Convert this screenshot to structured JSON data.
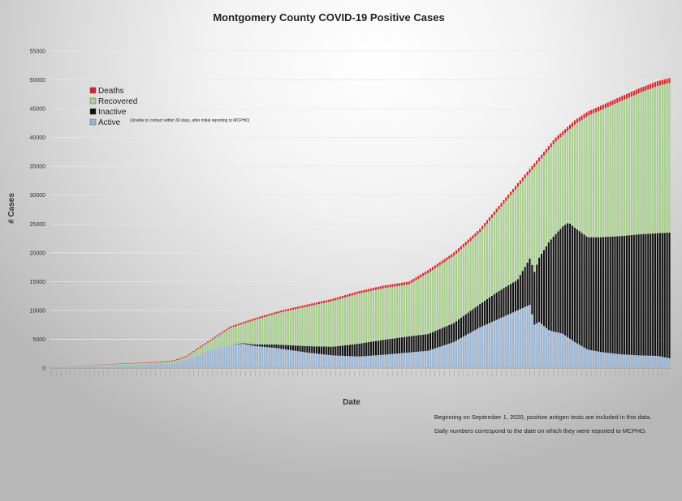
{
  "chart_data": {
    "type": "bar",
    "stacked": true,
    "title": "Montgomery County COVID-19 Positive Cases",
    "xlabel": "Date",
    "ylabel": "# Cases",
    "ylim": [
      0,
      55000
    ],
    "yticks": [
      0,
      5000,
      10000,
      15000,
      20000,
      25000,
      30000,
      35000,
      40000,
      45000,
      50000,
      55000
    ],
    "grid": true,
    "legend_position": "top-left",
    "series": [
      {
        "name": "Deaths",
        "color": "#e0202a"
      },
      {
        "name": "Recovered",
        "color": "#a9d08e"
      },
      {
        "name": "Inactive",
        "color": "#111111",
        "note": "(Unable to contact within 30 days, after initial reporting to MCPHD)"
      },
      {
        "name": "Active",
        "color": "#9bb7d6"
      }
    ],
    "bar_count": 262,
    "keyframes_total": [
      [
        0,
        0
      ],
      [
        10,
        120
      ],
      [
        30,
        500
      ],
      [
        60,
        850
      ],
      [
        80,
        1000
      ],
      [
        95,
        1300
      ],
      [
        105,
        2000
      ],
      [
        115,
        3500
      ],
      [
        125,
        5000
      ],
      [
        140,
        7200
      ],
      [
        160,
        8700
      ],
      [
        180,
        10000
      ],
      [
        200,
        11000
      ],
      [
        220,
        12000
      ],
      [
        240,
        13300
      ],
      [
        260,
        14300
      ],
      [
        280,
        15000
      ],
      [
        295,
        17000
      ],
      [
        315,
        20000
      ],
      [
        335,
        24000
      ],
      [
        350,
        28000
      ],
      [
        365,
        32000
      ],
      [
        380,
        36000
      ],
      [
        395,
        40000
      ],
      [
        410,
        43000
      ],
      [
        420,
        44500
      ],
      [
        440,
        46500
      ],
      [
        460,
        48500
      ],
      [
        475,
        49800
      ],
      [
        484,
        50300
      ]
    ],
    "keyframes_active": [
      [
        0,
        0
      ],
      [
        60,
        500
      ],
      [
        95,
        800
      ],
      [
        115,
        2200
      ],
      [
        125,
        3200
      ],
      [
        140,
        4000
      ],
      [
        150,
        4200
      ],
      [
        160,
        3800
      ],
      [
        175,
        3500
      ],
      [
        200,
        2700
      ],
      [
        220,
        2200
      ],
      [
        240,
        2000
      ],
      [
        260,
        2300
      ],
      [
        280,
        2700
      ],
      [
        295,
        3000
      ],
      [
        315,
        4500
      ],
      [
        335,
        7000
      ],
      [
        350,
        8500
      ],
      [
        360,
        9500
      ],
      [
        370,
        10500
      ],
      [
        375,
        11000
      ],
      [
        378,
        7500
      ],
      [
        382,
        8000
      ],
      [
        390,
        6500
      ],
      [
        400,
        6000
      ],
      [
        410,
        4500
      ],
      [
        420,
        3200
      ],
      [
        430,
        2800
      ],
      [
        445,
        2400
      ],
      [
        460,
        2200
      ],
      [
        475,
        2100
      ],
      [
        484,
        1700
      ]
    ],
    "keyframes_inactive": [
      [
        0,
        0
      ],
      [
        140,
        0
      ],
      [
        155,
        200
      ],
      [
        175,
        600
      ],
      [
        200,
        1100
      ],
      [
        220,
        1500
      ],
      [
        240,
        2200
      ],
      [
        260,
        2600
      ],
      [
        280,
        2800
      ],
      [
        295,
        2900
      ],
      [
        315,
        3300
      ],
      [
        335,
        4000
      ],
      [
        350,
        4800
      ],
      [
        365,
        5300
      ],
      [
        378,
        9000
      ],
      [
        390,
        15500
      ],
      [
        405,
        20000
      ],
      [
        420,
        19500
      ],
      [
        440,
        20300
      ],
      [
        460,
        21000
      ],
      [
        475,
        21300
      ],
      [
        484,
        21800
      ]
    ],
    "keyframes_deaths": [
      [
        0,
        0
      ],
      [
        80,
        100
      ],
      [
        120,
        200
      ],
      [
        160,
        300
      ],
      [
        200,
        350
      ],
      [
        260,
        450
      ],
      [
        320,
        550
      ],
      [
        380,
        650
      ],
      [
        420,
        750
      ],
      [
        484,
        850
      ]
    ]
  },
  "legend": {
    "deaths_label": "Deaths",
    "recovered_label": "Recovered",
    "inactive_label": "Inactive",
    "active_label": "Active",
    "inactive_note": "(Unable to contact within 30 days, after initial reporting to MCPHD)"
  },
  "notes": {
    "line1": "Beginning on September 1, 2020, positive antigen tests are included in this data.",
    "line2": "Daily numbers correspond to the date on which they were reported to MCPHD."
  }
}
